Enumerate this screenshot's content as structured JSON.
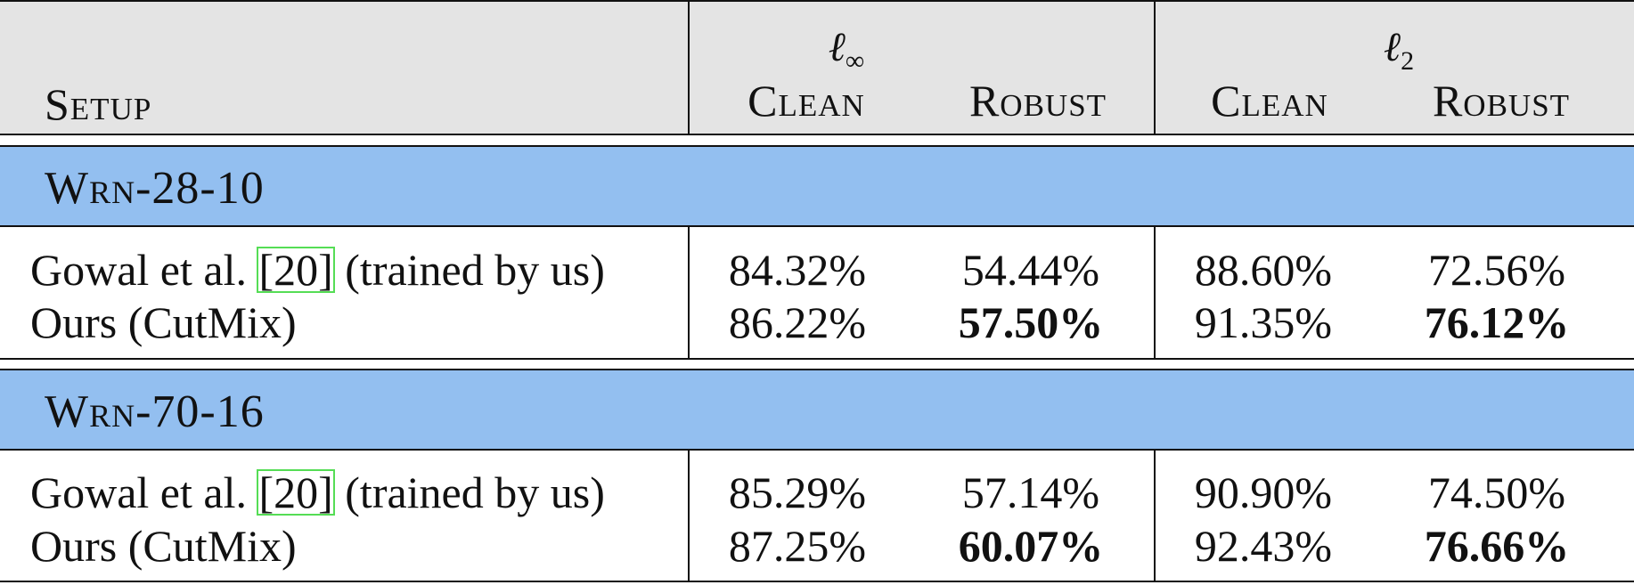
{
  "header": {
    "setup": "Setup",
    "norm_linf": {
      "symbol": "ℓ",
      "sub": "∞"
    },
    "norm_l2": {
      "symbol": "ℓ",
      "sub": "2"
    },
    "clean": "Clean",
    "robust": "Robust"
  },
  "sections": [
    {
      "label": "Wrn-28-10",
      "rows": [
        {
          "label_pre": "Gowal et al. ",
          "cite": "[20]",
          "label_post": " (trained by us)",
          "linf_clean": "84.32%",
          "linf_robust": "54.44%",
          "l2_clean": "88.60%",
          "l2_robust": "72.56%"
        },
        {
          "label_pre": "Ours (CutMix)",
          "cite": "",
          "label_post": "",
          "linf_clean": "86.22%",
          "linf_robust": "57.50%",
          "l2_clean": "91.35%",
          "l2_robust": "76.12%"
        }
      ]
    },
    {
      "label": "Wrn-70-16",
      "rows": [
        {
          "label_pre": "Gowal et al. ",
          "cite": "[20]",
          "label_post": " (trained by us)",
          "linf_clean": "85.29%",
          "linf_robust": "57.14%",
          "l2_clean": "90.90%",
          "l2_robust": "74.50%"
        },
        {
          "label_pre": "Ours (CutMix)",
          "cite": "",
          "label_post": "",
          "linf_clean": "87.25%",
          "linf_robust": "60.07%",
          "l2_clean": "92.43%",
          "l2_robust": "76.66%"
        }
      ]
    }
  ],
  "colors": {
    "header_bg": "#e4e4e4",
    "section_bg": "#93bff0",
    "cite_box": "#55dd55"
  }
}
